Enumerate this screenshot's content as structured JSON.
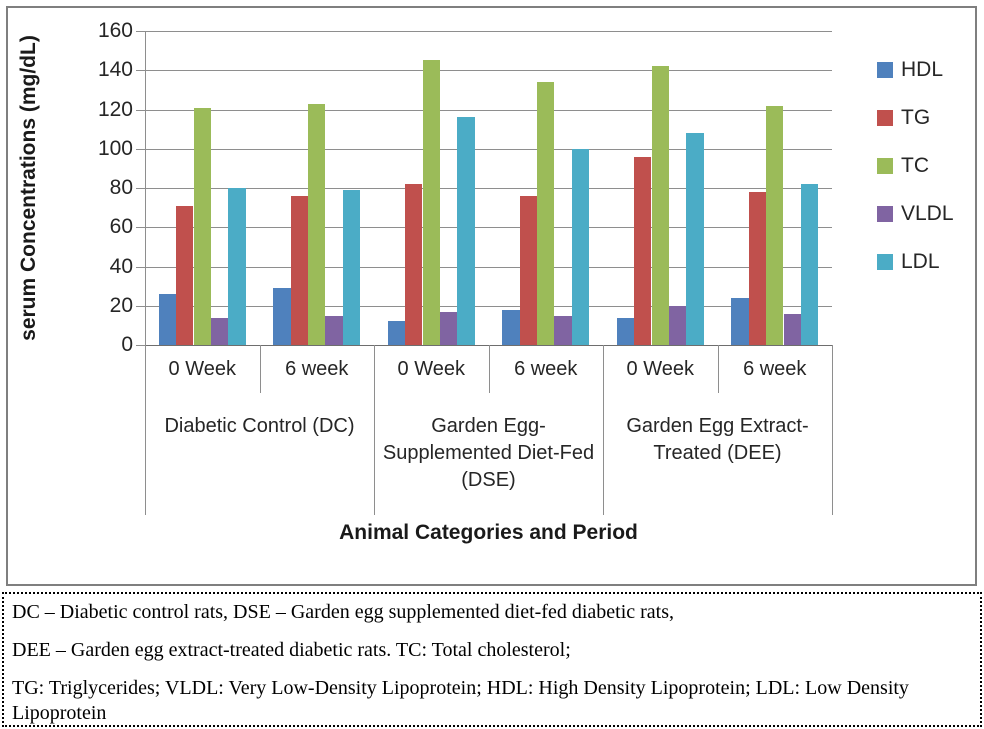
{
  "chart_data": {
    "type": "bar",
    "title": "",
    "ylabel": "serum Concentrations (mg/dL)",
    "xlabel": "Animal Categories and Period",
    "ylim": [
      0,
      160
    ],
    "ytick_step": 20,
    "grid": true,
    "legend_position": "right",
    "categories": [
      "0 Week",
      "6 week",
      "0 Week",
      "6 week",
      "0 Week",
      "6 week"
    ],
    "group_categories": [
      "Diabetic Control (DC)",
      "Garden Egg-Supplemented Diet-Fed (DSE)",
      "Garden Egg Extract-Treated (DEE)"
    ],
    "series": [
      {
        "name": "HDL",
        "color": "#4F81BD",
        "values": [
          26,
          29,
          12,
          18,
          14,
          24
        ]
      },
      {
        "name": "TG",
        "color": "#C0504D",
        "values": [
          71,
          76,
          82,
          76,
          96,
          78
        ]
      },
      {
        "name": "TC",
        "color": "#9BBB59",
        "values": [
          121,
          123,
          145,
          134,
          142,
          122
        ]
      },
      {
        "name": "VLDL",
        "color": "#8064A2",
        "values": [
          14,
          15,
          17,
          15,
          20,
          16
        ]
      },
      {
        "name": "LDL",
        "color": "#4BACC6",
        "values": [
          80,
          79,
          116,
          100,
          108,
          82
        ]
      }
    ]
  },
  "footnote": {
    "lines": [
      "DC – Diabetic control rats, DSE – Garden egg supplemented diet-fed diabetic rats,",
      "DEE – Garden egg extract-treated diabetic rats. TC: Total cholesterol;",
      "TG: Triglycerides; VLDL: Very Low-Density Lipoprotein; HDL: High Density Lipoprotein; LDL: Low Density Lipoprotein"
    ]
  }
}
